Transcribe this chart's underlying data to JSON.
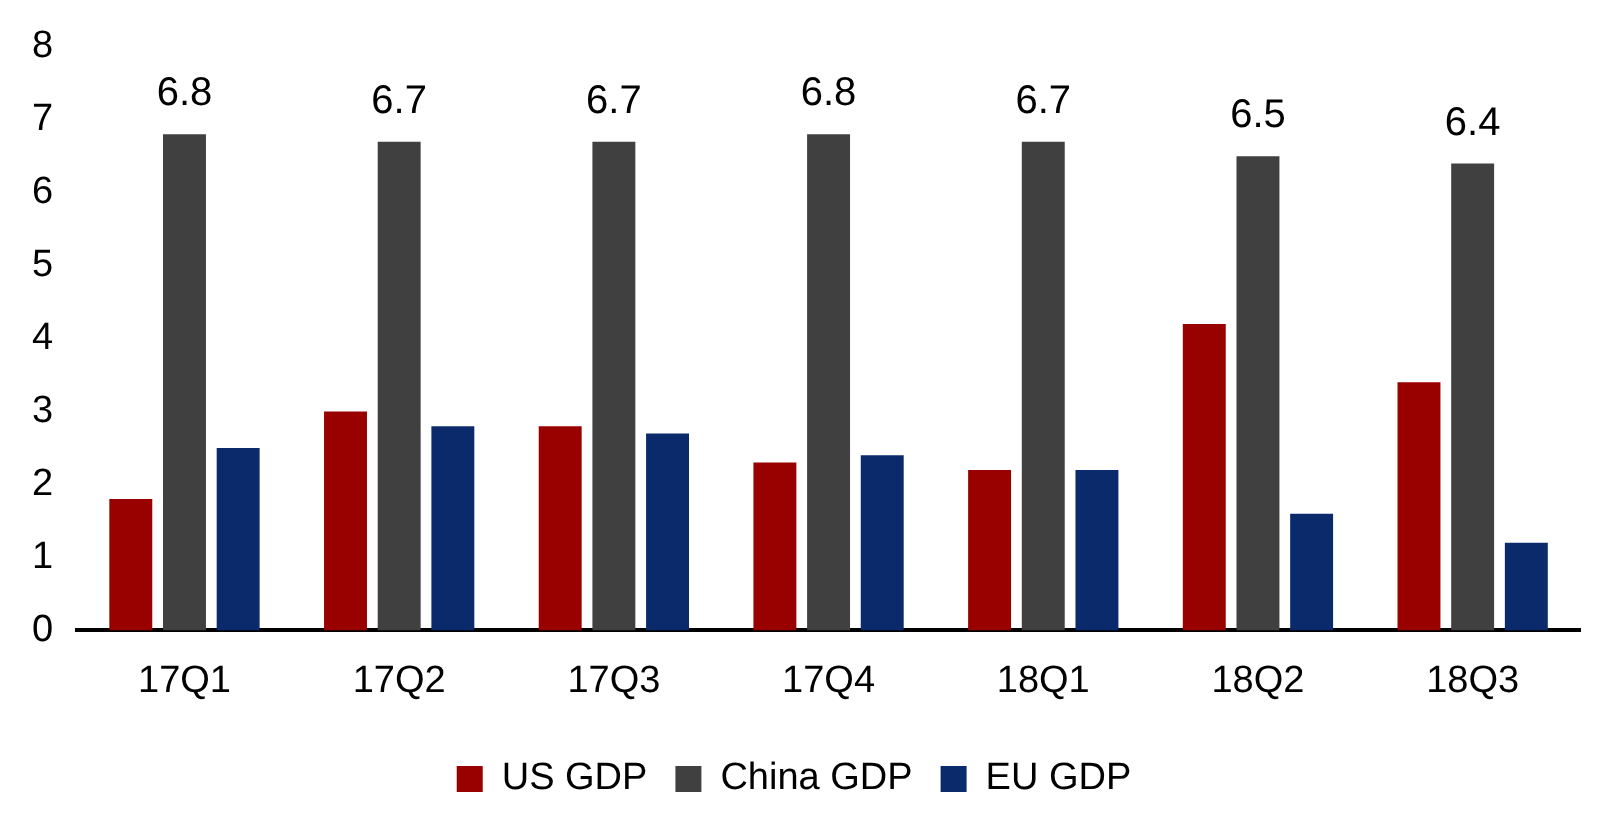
{
  "chart_data": {
    "type": "bar",
    "categories": [
      "17Q1",
      "17Q2",
      "17Q3",
      "17Q4",
      "18Q1",
      "18Q2",
      "18Q3"
    ],
    "series": [
      {
        "name": "US GDP",
        "color": "#990000",
        "values": [
          1.8,
          3.0,
          2.8,
          2.3,
          2.2,
          4.2,
          3.4
        ]
      },
      {
        "name": "China GDP",
        "color": "#404040",
        "values": [
          6.8,
          6.7,
          6.7,
          6.8,
          6.7,
          6.5,
          6.4
        ],
        "value_labels": [
          "6.8",
          "6.7",
          "6.7",
          "6.8",
          "6.7",
          "6.5",
          "6.4"
        ]
      },
      {
        "name": "EU GDP",
        "color": "#0b2a6b",
        "values": [
          2.5,
          2.8,
          2.7,
          2.4,
          2.2,
          1.6,
          1.2
        ]
      }
    ],
    "ylim": [
      0,
      8
    ],
    "yticks": [
      0,
      1,
      2,
      3,
      4,
      5,
      6,
      7,
      8
    ],
    "grid": false,
    "legend": "bottom"
  }
}
